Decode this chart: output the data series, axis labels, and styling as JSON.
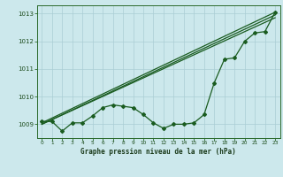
{
  "xlabel": "Graphe pression niveau de la mer (hPa)",
  "bg_color": "#cce8ec",
  "grid_color": "#aacdd4",
  "line_color": "#1a5c20",
  "ylim": [
    1008.5,
    1013.3
  ],
  "xlim": [
    -0.5,
    23.5
  ],
  "yticks": [
    1009,
    1010,
    1011,
    1012,
    1013
  ],
  "xticks": [
    0,
    1,
    2,
    3,
    4,
    5,
    6,
    7,
    8,
    9,
    10,
    11,
    12,
    13,
    14,
    15,
    16,
    17,
    18,
    19,
    20,
    21,
    22,
    23
  ],
  "series1_x": [
    0,
    1,
    2,
    3,
    4,
    5,
    6,
    7,
    8,
    9,
    10,
    11,
    12,
    13,
    14,
    15,
    16,
    17,
    18,
    19,
    20,
    21,
    22,
    23
  ],
  "series1_y": [
    1009.1,
    1009.1,
    1008.75,
    1009.05,
    1009.05,
    1009.3,
    1009.6,
    1009.7,
    1009.65,
    1009.6,
    1009.35,
    1009.05,
    1008.85,
    1009.0,
    1009.0,
    1009.05,
    1009.35,
    1010.5,
    1011.35,
    1011.4,
    1012.0,
    1012.3,
    1012.35,
    1013.05
  ],
  "trend1_x": [
    0,
    23
  ],
  "trend1_y": [
    1009.05,
    1013.05
  ],
  "trend2_x": [
    0,
    23
  ],
  "trend2_y": [
    1009.0,
    1012.95
  ],
  "trend3_x": [
    0,
    23
  ],
  "trend3_y": [
    1009.0,
    1012.85
  ]
}
